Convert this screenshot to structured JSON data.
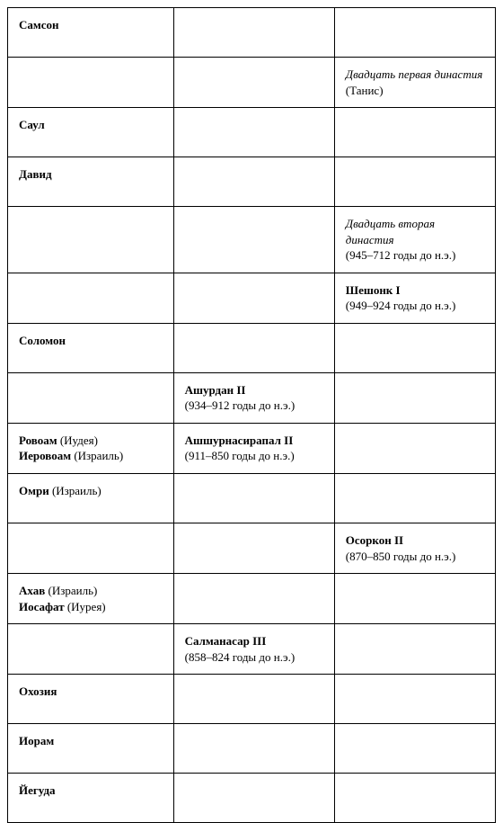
{
  "table": {
    "columns": [
      {
        "width_pct": 34
      },
      {
        "width_pct": 33
      },
      {
        "width_pct": 33
      }
    ],
    "rows": [
      {
        "c1": {
          "bold": "Самсон"
        },
        "c2": {},
        "c3": {}
      },
      {
        "c1": {},
        "c2": {},
        "c3": {
          "italic": "Двадцать первая династия",
          "plain_after_italic": " (Танис)"
        }
      },
      {
        "c1": {
          "bold": "Саул"
        },
        "c2": {},
        "c3": {}
      },
      {
        "c1": {
          "bold": "Давид"
        },
        "c2": {},
        "c3": {}
      },
      {
        "c1": {},
        "c2": {},
        "c3": {
          "italic": "Двадцать вторая династия",
          "plain_line2": "(945–712 годы до н.э.)"
        }
      },
      {
        "c1": {},
        "c2": {},
        "c3": {
          "bold": "Шешонк I",
          "plain_line2": "(949–924 годы до н.э.)"
        }
      },
      {
        "c1": {
          "bold": "Соломон"
        },
        "c2": {},
        "c3": {}
      },
      {
        "c1": {},
        "c2": {
          "bold": "Ашурдан II",
          "plain_line2": "(934–912 годы до н.э.)"
        },
        "c3": {}
      },
      {
        "c1": {
          "bold": "Ровоам",
          "plain_after_bold": " (Иудея)",
          "bold_line2": "Иеровоам",
          "plain_after_bold_line2": " (Израиль)"
        },
        "c2": {
          "bold": "Ашшурнасирапал II",
          "plain_line2": "(911–850 годы до н.э.)"
        },
        "c3": {}
      },
      {
        "c1": {
          "bold": "Омри",
          "plain_after_bold": " (Израиль)"
        },
        "c2": {},
        "c3": {}
      },
      {
        "c1": {},
        "c2": {},
        "c3": {
          "bold": "Осоркон II",
          "plain_line2": "(870–850 годы до н.э.)"
        }
      },
      {
        "c1": {
          "bold": "Ахав",
          "plain_after_bold": " (Израиль)",
          "bold_line2": "Иосафат",
          "plain_after_bold_line2": " (Иурея)"
        },
        "c2": {},
        "c3": {}
      },
      {
        "c1": {},
        "c2": {
          "bold": "Салманасар III",
          "plain_line2": "(858–824 годы до н.э.)"
        },
        "c3": {}
      },
      {
        "c1": {
          "bold": "Охозия"
        },
        "c2": {},
        "c3": {}
      },
      {
        "c1": {
          "bold": "Иорам"
        },
        "c2": {},
        "c3": {}
      },
      {
        "c1": {
          "bold": "Йегуда"
        },
        "c2": {},
        "c3": {}
      }
    ]
  },
  "style": {
    "font_family": "Georgia, 'Times New Roman', serif",
    "font_size_pt": 10,
    "border_color": "#000000",
    "background_color": "#ffffff",
    "text_color": "#000000"
  }
}
